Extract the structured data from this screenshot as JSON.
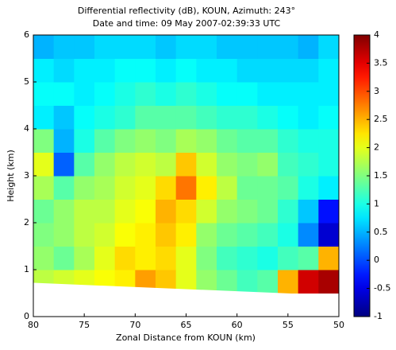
{
  "chart_data": {
    "type": "heatmap",
    "title": "Differential reflectivity (dB), KOUN, Azimuth: 243°",
    "subtitle": "Date and time: 09 May 2007-02:39:33 UTC",
    "x_label": "Zonal Distance from KOUN (km)",
    "y_label": "Height (km)",
    "colormap": "jet",
    "x": [
      79,
      77,
      75,
      73,
      71,
      69,
      67,
      65,
      63,
      61,
      59,
      57,
      55,
      53,
      51
    ],
    "y": [
      0.75,
      1.25,
      1.75,
      2.25,
      2.75,
      3.25,
      3.75,
      4.25,
      4.75,
      5.25,
      5.75
    ],
    "z": [
      [
        1.8,
        1.9,
        2.0,
        2.1,
        2.2,
        2.6,
        2.4,
        2.0,
        1.6,
        1.4,
        1.2,
        1.3,
        2.5,
        3.6,
        3.8
      ],
      [
        1.6,
        1.4,
        1.7,
        2.0,
        2.3,
        2.2,
        2.3,
        2.0,
        1.5,
        1.2,
        1.1,
        1.0,
        1.2,
        1.3,
        2.5
      ],
      [
        1.5,
        1.6,
        1.8,
        1.9,
        2.1,
        2.2,
        2.4,
        2.2,
        1.6,
        1.4,
        1.3,
        1.2,
        1.0,
        0.3,
        -0.6
      ],
      [
        1.4,
        1.6,
        1.8,
        1.8,
        2.0,
        2.1,
        2.5,
        2.3,
        1.9,
        1.6,
        1.5,
        1.4,
        1.1,
        0.6,
        -0.3
      ],
      [
        1.7,
        1.3,
        1.6,
        1.7,
        1.9,
        2.0,
        2.3,
        2.8,
        2.2,
        1.8,
        1.4,
        1.4,
        1.3,
        1.0,
        0.8
      ],
      [
        2.0,
        0.1,
        1.3,
        1.6,
        1.8,
        1.9,
        1.8,
        2.4,
        1.9,
        1.6,
        1.5,
        1.6,
        1.2,
        1.1,
        1.0
      ],
      [
        1.5,
        0.5,
        1.0,
        1.3,
        1.5,
        1.6,
        1.5,
        1.7,
        1.6,
        1.4,
        1.3,
        1.3,
        1.1,
        1.0,
        1.0
      ],
      [
        0.8,
        0.6,
        0.9,
        1.0,
        1.1,
        1.3,
        1.3,
        1.3,
        1.2,
        1.1,
        1.1,
        1.0,
        0.9,
        0.8,
        0.9
      ],
      [
        0.9,
        0.9,
        0.8,
        0.9,
        1.0,
        1.1,
        1.0,
        1.1,
        1.0,
        0.9,
        0.9,
        0.8,
        0.8,
        0.8,
        0.8
      ],
      [
        0.8,
        0.7,
        0.8,
        0.8,
        0.9,
        0.9,
        0.8,
        0.9,
        0.8,
        0.8,
        0.7,
        0.7,
        0.7,
        0.7,
        0.8
      ],
      [
        0.5,
        0.6,
        0.6,
        0.7,
        0.7,
        0.7,
        0.6,
        0.7,
        0.7,
        0.6,
        0.6,
        0.6,
        0.6,
        0.5,
        0.7
      ]
    ],
    "xlim": [
      80,
      50
    ],
    "xticks": [
      80,
      75,
      70,
      65,
      60,
      55,
      50
    ],
    "ylim": [
      0,
      6
    ],
    "yticks": [
      0,
      1,
      2,
      3,
      4,
      5,
      6
    ],
    "clim": [
      -1,
      4
    ],
    "cticks": [
      -1,
      -0.5,
      0,
      0.5,
      1,
      1.5,
      2,
      2.5,
      3,
      3.5,
      4
    ]
  }
}
